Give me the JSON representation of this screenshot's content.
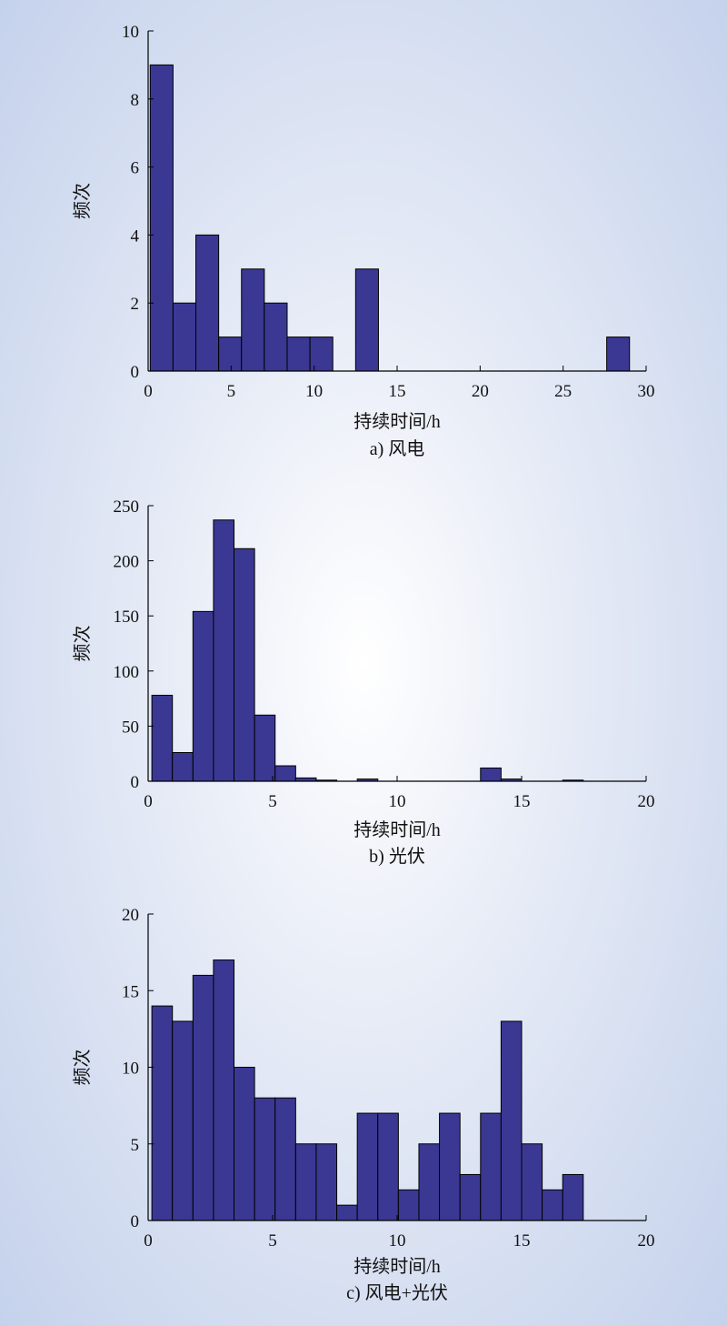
{
  "chart_data": [
    {
      "type": "bar",
      "title": "",
      "caption": "a) 风电",
      "xlabel": "持续时间/h",
      "ylabel": "频次",
      "xlim": [
        0,
        30
      ],
      "ylim": [
        0,
        10
      ],
      "xticks": [
        0,
        5,
        10,
        15,
        20,
        25,
        30
      ],
      "yticks": [
        0,
        2,
        4,
        6,
        8,
        10
      ],
      "bin_width": 1.375,
      "bin_edges_start": 0.125,
      "values": [
        9,
        2,
        4,
        1,
        3,
        2,
        1,
        1,
        0,
        3,
        0,
        0,
        0,
        0,
        0,
        0,
        0,
        0,
        0,
        0,
        1
      ],
      "bar_color": "#3a3893",
      "grid": false
    },
    {
      "type": "bar",
      "title": "",
      "caption": "b) 光伏",
      "xlabel": "持续时间/h",
      "ylabel": "频次",
      "xlim": [
        0,
        20
      ],
      "ylim": [
        0,
        250
      ],
      "xticks": [
        0,
        5,
        10,
        15,
        20
      ],
      "yticks": [
        0,
        50,
        100,
        150,
        200,
        250
      ],
      "bin_width": 0.825,
      "bin_edges_start": 0.15,
      "values": [
        78,
        26,
        154,
        237,
        211,
        60,
        14,
        3,
        1,
        0,
        2,
        0,
        0,
        0,
        0,
        0,
        12,
        2,
        0,
        0,
        1
      ],
      "bar_color": "#3a3893",
      "grid": false
    },
    {
      "type": "bar",
      "title": "",
      "caption": "c) 风电+光伏",
      "xlabel": "持续时间/h",
      "ylabel": "频次",
      "xlim": [
        0,
        20
      ],
      "ylim": [
        0,
        20
      ],
      "xticks": [
        0,
        5,
        10,
        15,
        20
      ],
      "yticks": [
        0,
        5,
        10,
        15,
        20
      ],
      "bin_width": 0.825,
      "bin_edges_start": 0.15,
      "values": [
        14,
        13,
        16,
        17,
        10,
        8,
        8,
        5,
        5,
        1,
        7,
        7,
        2,
        5,
        7,
        3,
        7,
        13,
        5,
        2,
        3
      ],
      "bar_color": "#3a3893",
      "grid": false
    }
  ]
}
